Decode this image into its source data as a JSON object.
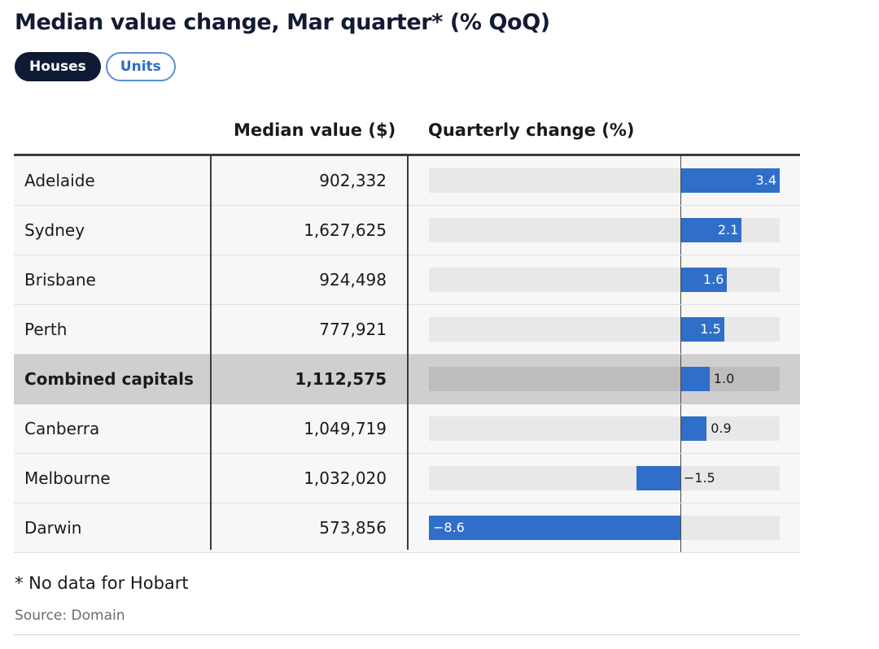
{
  "title": "Median value change, Mar quarter* (% QoQ)",
  "toggles": [
    {
      "label": "Houses",
      "active": true
    },
    {
      "label": "Units",
      "active": false
    }
  ],
  "columns": {
    "city": "",
    "median": "Median value ($)",
    "change": "Quarterly change (%)"
  },
  "chart_data": {
    "type": "table",
    "columns": [
      "",
      "Median value ($)",
      "Quarterly change (%)"
    ],
    "rows": [
      {
        "city": "Adelaide",
        "median": "902,332",
        "change": 3.4,
        "change_label": "3.4",
        "highlight": false
      },
      {
        "city": "Sydney",
        "median": "1,627,625",
        "change": 2.1,
        "change_label": "2.1",
        "highlight": false
      },
      {
        "city": "Brisbane",
        "median": "924,498",
        "change": 1.6,
        "change_label": "1.6",
        "highlight": false
      },
      {
        "city": "Perth",
        "median": "777,921",
        "change": 1.5,
        "change_label": "1.5",
        "highlight": false
      },
      {
        "city": "Combined capitals",
        "median": "1,112,575",
        "change": 1.0,
        "change_label": "1.0",
        "highlight": true
      },
      {
        "city": "Canberra",
        "median": "1,049,719",
        "change": 0.9,
        "change_label": "0.9",
        "highlight": false
      },
      {
        "city": "Melbourne",
        "median": "1,032,020",
        "change": -1.5,
        "change_label": "−1.5",
        "highlight": false
      },
      {
        "city": "Darwin",
        "median": "573,856",
        "change": -8.6,
        "change_label": "−8.6",
        "highlight": false
      }
    ],
    "change_range": [
      -8.6,
      3.4
    ],
    "bar_color": "#2f6ec9"
  },
  "footnote": "* No data for Hobart",
  "source": "Source: Domain",
  "colors": {
    "accent": "#2f6ec9",
    "toggle_active": "#0f1a33",
    "highlight_row": "#cfcfcf"
  }
}
